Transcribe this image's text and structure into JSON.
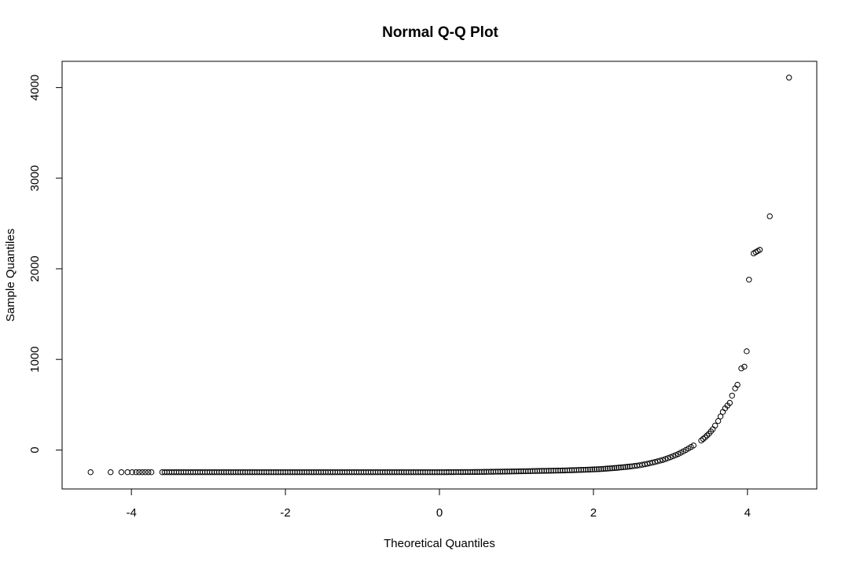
{
  "chart_data": {
    "type": "scatter",
    "title": "Normal Q-Q Plot",
    "xlabel": "Theoretical Quantiles",
    "ylabel": "Sample Quantiles",
    "xlim": [
      -4.9,
      4.9
    ],
    "ylim": [
      -430,
      4290
    ],
    "x_ticks": [
      -4,
      -2,
      0,
      2,
      4
    ],
    "y_ticks": [
      0,
      1000,
      2000,
      3000,
      4000
    ],
    "x_tick_labels": [
      "-4",
      "-2",
      "0",
      "2",
      "4"
    ],
    "y_tick_labels": [
      "0",
      "1000",
      "2000",
      "3000",
      "4000"
    ],
    "grid": false,
    "legend": "none",
    "marker": "open-circle",
    "series": [
      {
        "x": [
          -4.53,
          -4.27,
          -4.13,
          -4.05,
          -3.99,
          -3.94,
          -3.9,
          -3.86,
          -3.82,
          -3.78,
          -3.74,
          -3.6,
          -3.2,
          -2.8,
          -2.4,
          -2.0,
          -1.6,
          -1.2,
          -0.8,
          -0.4,
          0.0,
          0.4,
          0.7,
          1.0,
          1.3,
          1.6,
          1.9,
          2.1,
          2.3,
          2.5,
          2.6,
          2.7,
          2.8,
          2.9,
          3.0,
          3.1,
          3.2,
          3.3,
          3.4,
          3.45,
          3.5,
          3.55,
          3.58,
          3.62,
          3.65,
          3.68,
          3.71,
          3.74,
          3.77,
          3.8,
          3.84,
          3.87,
          3.92,
          3.96,
          3.99,
          4.02,
          4.08,
          4.16,
          4.29,
          4.54
        ],
        "y": [
          -245,
          -245,
          -245,
          -245,
          -245,
          -245,
          -245,
          -245,
          -245,
          -245,
          -245,
          -245,
          -245,
          -245,
          -245,
          -245,
          -245,
          -245,
          -245,
          -245,
          -245,
          -243,
          -240,
          -236,
          -231,
          -226,
          -218,
          -210,
          -197,
          -180,
          -168,
          -152,
          -132,
          -110,
          -80,
          -45,
          0,
          50,
          105,
          140,
          180,
          230,
          270,
          320,
          370,
          420,
          460,
          490,
          520,
          600,
          680,
          720,
          900,
          920,
          1090,
          1880,
          2170,
          2210,
          2580,
          4110
        ]
      }
    ]
  }
}
